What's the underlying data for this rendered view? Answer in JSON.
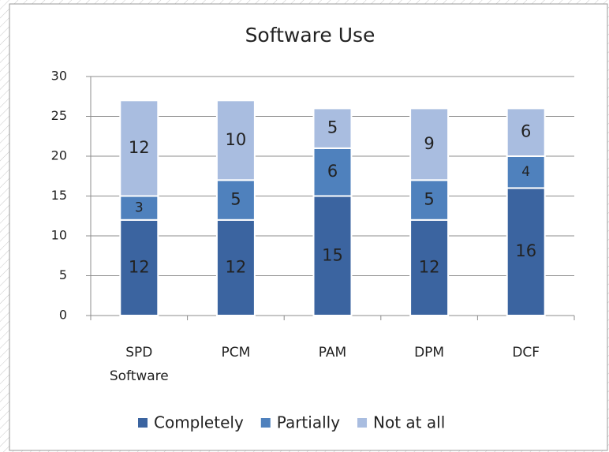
{
  "chart_data": {
    "type": "stacked_bar",
    "title": "Software Use",
    "categories": [
      "SPD Software",
      "PCM",
      "PAM",
      "DPM",
      "DCF"
    ],
    "series": [
      {
        "name": "Completely",
        "color": "#3b64a0",
        "values": [
          12,
          12,
          15,
          12,
          16
        ]
      },
      {
        "name": "Partially",
        "color": "#4f81bd",
        "values": [
          3,
          5,
          6,
          5,
          4
        ]
      },
      {
        "name": "Not at all",
        "color": "#a9bde0",
        "values": [
          12,
          10,
          5,
          9,
          6
        ]
      }
    ],
    "ylim": [
      0,
      30
    ],
    "yticks": [
      0,
      5,
      10,
      15,
      20,
      25,
      30
    ],
    "grid": true,
    "legend": "bottom"
  }
}
